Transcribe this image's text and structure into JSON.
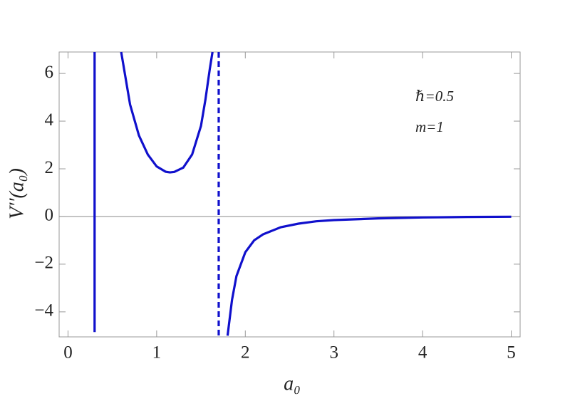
{
  "chart_data": {
    "type": "line",
    "x_label": "a₀",
    "y_label": "V′′(a₀)",
    "annotations": [
      "ℏ=0.5",
      "m=1"
    ],
    "xlim": [
      -0.1,
      5.1
    ],
    "ylim": [
      -5.05,
      6.9
    ],
    "xticks": [
      0,
      1,
      2,
      3,
      4,
      5
    ],
    "yticks": [
      {
        "value": -4,
        "label": "−4"
      },
      {
        "value": -2,
        "label": "−2"
      },
      0,
      2,
      4,
      6
    ],
    "zero_line": true,
    "series": [
      {
        "color": "#1010cc",
        "dashed": false,
        "x": [
          0.3,
          0.3
        ],
        "values": [
          6.9,
          -4.85
        ]
      },
      {
        "color": "#1010cc",
        "dashed": false,
        "x": [
          0.6,
          0.7,
          0.8,
          0.9,
          1.0,
          1.1,
          1.15,
          1.2,
          1.3,
          1.4,
          1.5,
          1.55,
          1.6,
          1.63
        ],
        "values": [
          6.9,
          4.7,
          3.4,
          2.6,
          2.1,
          1.88,
          1.85,
          1.87,
          2.05,
          2.6,
          3.8,
          4.9,
          6.2,
          6.9
        ]
      },
      {
        "color": "#1010cc",
        "dashed": true,
        "x": [
          1.7,
          1.7
        ],
        "values": [
          6.9,
          -5.05
        ]
      },
      {
        "color": "#1010cc",
        "dashed": false,
        "x": [
          1.8,
          1.85,
          1.9,
          2.0,
          2.1,
          2.2,
          2.4,
          2.6,
          2.8,
          3.0,
          3.5,
          4.0,
          4.5,
          5.0
        ],
        "values": [
          -5.0,
          -3.5,
          -2.5,
          -1.5,
          -1.0,
          -0.75,
          -0.45,
          -0.3,
          -0.2,
          -0.15,
          -0.08,
          -0.04,
          -0.02,
          -0.01
        ]
      }
    ]
  }
}
